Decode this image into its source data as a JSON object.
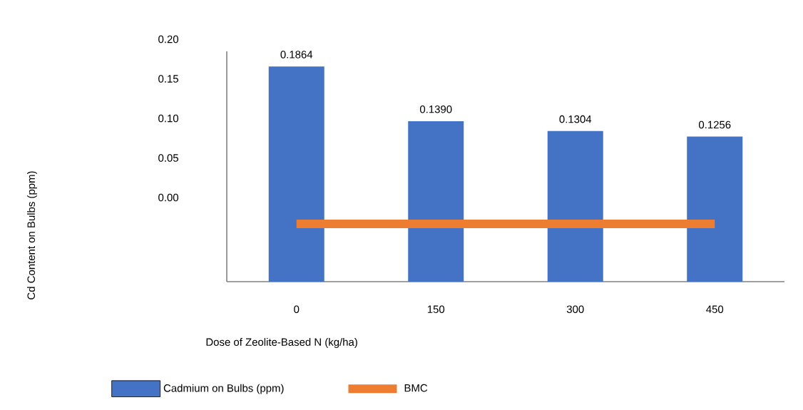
{
  "chart_data": {
    "type": "bar",
    "xlabel": "Dose of Zeolite-Based N  (kg/ha)",
    "categories": [
      "0",
      "150",
      "300",
      "450"
    ],
    "series": [
      {
        "name": "Cadmium on Bulbs (ppm)",
        "color": "#4472c4",
        "values": [
          0.1864,
          0.139,
          0.1304,
          0.1256
        ],
        "value_labels": [
          "0.1864",
          "0.1390",
          "0.1304",
          "0.1256"
        ]
      },
      {
        "name": "BMC",
        "type": "line",
        "color": "#ed7d31",
        "values": [
          0.05,
          0.05,
          0.05,
          0.05
        ]
      }
    ],
    "annotations": [
      "Cd Content on Bulbs  (ppm)",
      "0.20",
      "0.15",
      "0.10",
      "0.05",
      "0.00"
    ],
    "legend": "bottom",
    "grid": false
  }
}
